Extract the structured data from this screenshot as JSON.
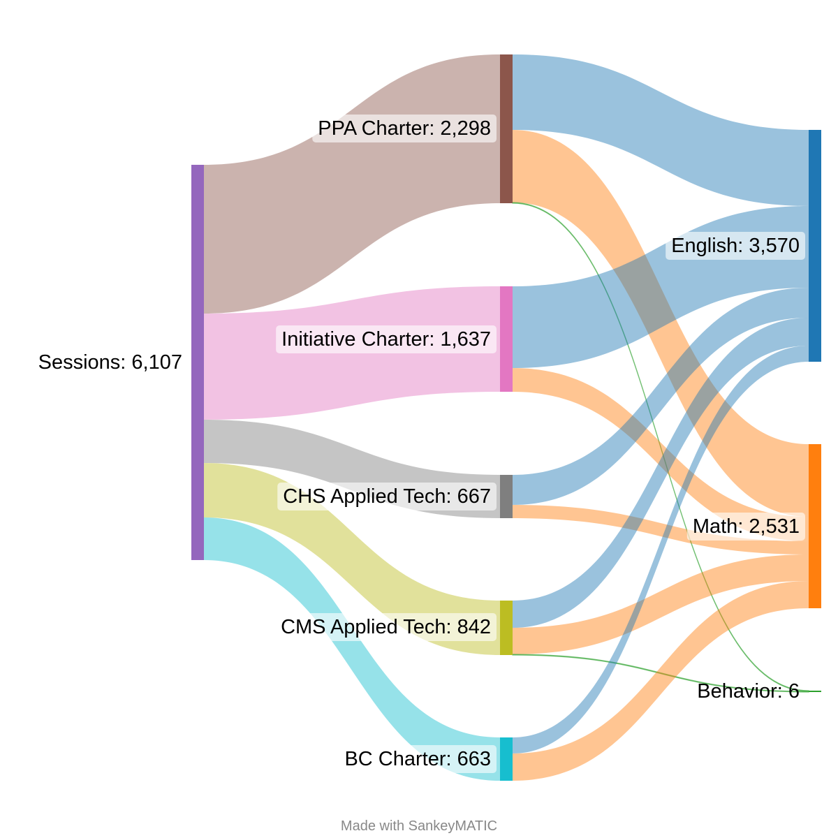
{
  "chart_data": {
    "type": "sankey",
    "footer": "Made with SankeyMATIC",
    "nodes": [
      {
        "id": "sessions",
        "name": "Sessions",
        "value": "6,107",
        "color": "#9467bd",
        "label_side": "left"
      },
      {
        "id": "ppa",
        "name": "PPA Charter",
        "value": "2,298",
        "color": "#8c564b",
        "label_side": "left"
      },
      {
        "id": "initiative",
        "name": "Initiative Charter",
        "value": "1,637",
        "color": "#e377c2",
        "label_side": "left"
      },
      {
        "id": "chs",
        "name": "CHS Applied Tech",
        "value": "667",
        "color": "#7f7f7f",
        "label_side": "left"
      },
      {
        "id": "cms",
        "name": "CMS Applied Tech",
        "value": "842",
        "color": "#bcbd22",
        "label_side": "left"
      },
      {
        "id": "bc",
        "name": "BC Charter",
        "value": "663",
        "color": "#17becf",
        "label_side": "left"
      },
      {
        "id": "english",
        "name": "English",
        "value": "3,570",
        "color": "#1f77b4",
        "label_side": "left"
      },
      {
        "id": "math",
        "name": "Math",
        "value": "2,531",
        "color": "#ff7f0e",
        "label_side": "left"
      },
      {
        "id": "behavior",
        "name": "Behavior",
        "value": "6",
        "color": "#2ca02c",
        "label_side": "left"
      }
    ],
    "links": [
      {
        "source": "sessions",
        "target": "ppa",
        "value": 2298
      },
      {
        "source": "sessions",
        "target": "initiative",
        "value": 1637
      },
      {
        "source": "sessions",
        "target": "chs",
        "value": 667
      },
      {
        "source": "sessions",
        "target": "cms",
        "value": 842
      },
      {
        "source": "sessions",
        "target": "bc",
        "value": 663
      },
      {
        "source": "ppa",
        "target": "english",
        "value": 1168
      },
      {
        "source": "ppa",
        "target": "math",
        "value": 1127
      },
      {
        "source": "ppa",
        "target": "behavior",
        "value": 3
      },
      {
        "source": "initiative",
        "target": "english",
        "value": 1256
      },
      {
        "source": "initiative",
        "target": "math",
        "value": 381
      },
      {
        "source": "chs",
        "target": "english",
        "value": 460
      },
      {
        "source": "chs",
        "target": "math",
        "value": 207
      },
      {
        "source": "cms",
        "target": "english",
        "value": 434
      },
      {
        "source": "cms",
        "target": "math",
        "value": 405
      },
      {
        "source": "cms",
        "target": "behavior",
        "value": 3
      },
      {
        "source": "bc",
        "target": "english",
        "value": 252
      },
      {
        "source": "bc",
        "target": "math",
        "value": 411
      }
    ]
  }
}
